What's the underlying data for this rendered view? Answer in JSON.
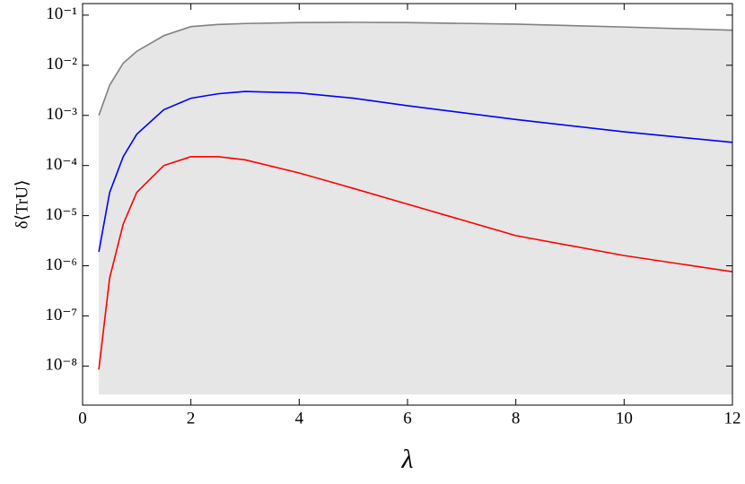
{
  "chart_data": {
    "type": "line",
    "xlabel": "λ",
    "ylabel": "δ⟨TrU⟩",
    "xlim": [
      0,
      12
    ],
    "xticks": [
      0,
      2,
      4,
      6,
      8,
      10,
      12
    ],
    "ylim": [
      1.66e-09,
      0.17
    ],
    "log_y": true,
    "yticks": [
      {
        "value": 1e-08,
        "label": "10⁻⁸"
      },
      {
        "value": 1e-07,
        "label": "10⁻⁷"
      },
      {
        "value": 1e-06,
        "label": "10⁻⁶"
      },
      {
        "value": 1e-05,
        "label": "10⁻⁵"
      },
      {
        "value": 0.0001,
        "label": "10⁻⁴"
      },
      {
        "value": 0.001,
        "label": "10⁻³"
      },
      {
        "value": 0.01,
        "label": "10⁻²"
      },
      {
        "value": 0.1,
        "label": "10⁻¹"
      }
    ],
    "fill_floor": 2.7e-09,
    "fill_color": "#e6e6e6",
    "x": [
      0.3,
      0.5,
      0.75,
      1,
      1.5,
      2,
      2.5,
      3,
      4,
      5,
      6,
      8,
      10,
      12
    ],
    "series": [
      {
        "color": "#808080",
        "fill": true,
        "values": [
          0.001,
          0.004,
          0.011,
          0.019,
          0.039,
          0.059,
          0.065,
          0.068,
          0.071,
          0.072,
          0.071,
          0.066,
          0.058,
          0.05
        ]
      },
      {
        "color": "#0000ff",
        "values": [
          1.9e-06,
          2.9e-05,
          0.00015,
          0.00042,
          0.0013,
          0.0022,
          0.0027,
          0.003,
          0.0028,
          0.0022,
          0.00156,
          0.00083,
          0.00047,
          0.00029
        ]
      },
      {
        "color": "#ff0000",
        "values": [
          8.5e-09,
          5.7e-07,
          6.8e-06,
          2.9e-05,
          0.0001,
          0.00015,
          0.00015,
          0.00013,
          7.1e-05,
          3.5e-05,
          1.7e-05,
          4e-06,
          1.6e-06,
          7.6e-07
        ]
      }
    ]
  }
}
